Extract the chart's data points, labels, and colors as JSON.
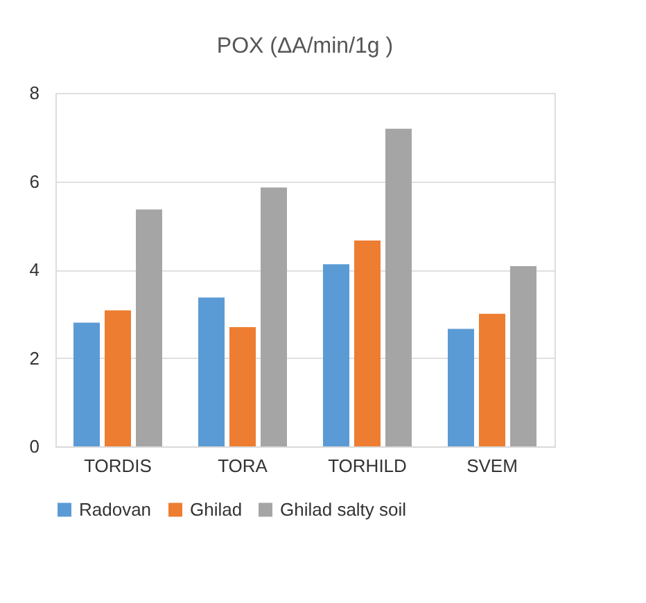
{
  "chart_data": {
    "type": "bar",
    "title": "POX (ΔA/min/1g )",
    "categories": [
      "TORDIS",
      "TORA",
      "TORHILD",
      "SVEM"
    ],
    "series": [
      {
        "name": "Radovan",
        "color": "#5b9bd5",
        "values": [
          2.8,
          3.37,
          4.12,
          2.66
        ]
      },
      {
        "name": "Ghilad",
        "color": "#ed7d31",
        "values": [
          3.08,
          2.7,
          4.66,
          3.0
        ]
      },
      {
        "name": "Ghilad salty soil",
        "color": "#a5a5a5",
        "values": [
          5.36,
          5.86,
          7.19,
          4.08
        ]
      }
    ],
    "ylim": [
      0,
      8
    ],
    "yticks": [
      0,
      2,
      4,
      6,
      8
    ],
    "grid": "y",
    "legend": "bottom"
  }
}
